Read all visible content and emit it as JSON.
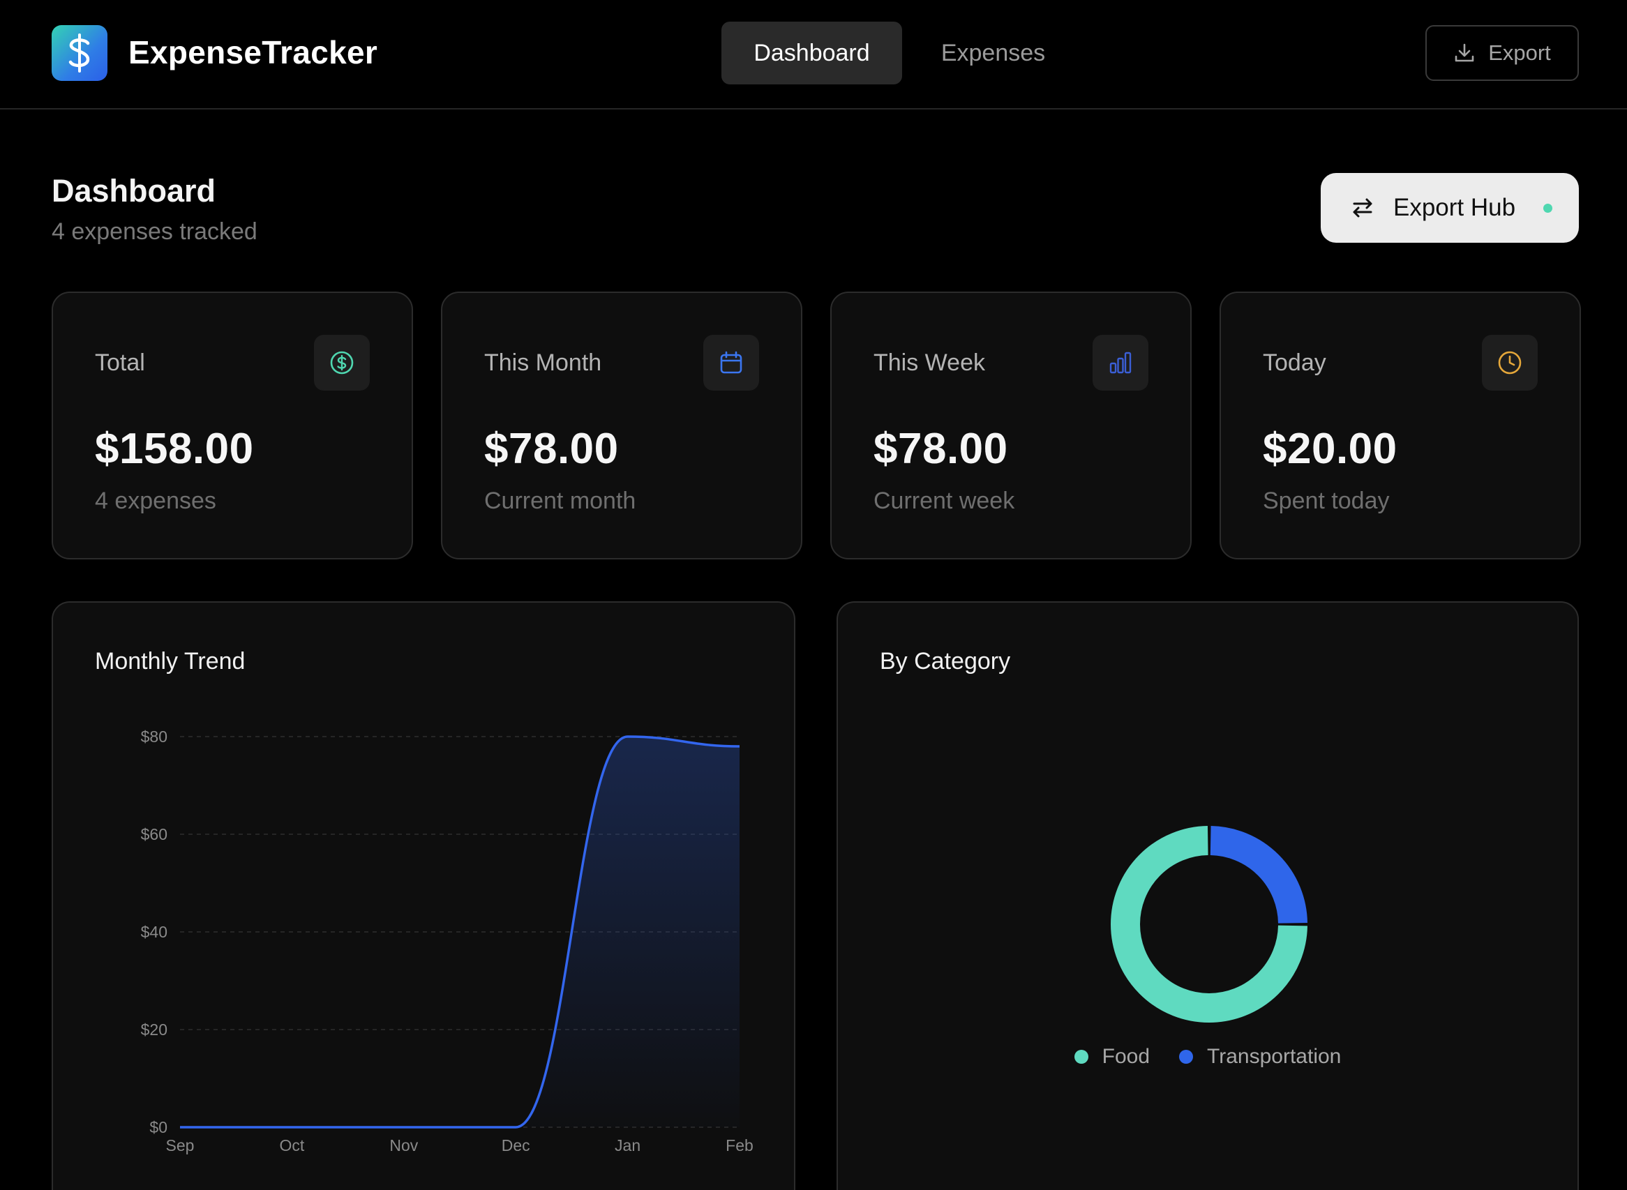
{
  "header": {
    "app_title": "ExpenseTracker",
    "logo_icon": "dollar-icon",
    "nav": [
      {
        "label": "Dashboard",
        "active": true
      },
      {
        "label": "Expenses",
        "active": false
      }
    ],
    "export_label": "Export"
  },
  "page": {
    "title": "Dashboard",
    "subtitle": "4 expenses tracked",
    "export_hub_label": "Export Hub"
  },
  "stats": [
    {
      "label": "Total",
      "value": "$158.00",
      "sub": "4 expenses",
      "icon": "dollar-circle-icon",
      "icon_color": "#4fd7b0"
    },
    {
      "label": "This Month",
      "value": "$78.00",
      "sub": "Current month",
      "icon": "calendar-icon",
      "icon_color": "#3b76f0"
    },
    {
      "label": "This Week",
      "value": "$78.00",
      "sub": "Current week",
      "icon": "bar-chart-icon",
      "icon_color": "#3b5fd6"
    },
    {
      "label": "Today",
      "value": "$20.00",
      "sub": "Spent today",
      "icon": "clock-icon",
      "icon_color": "#e5a73a"
    }
  ],
  "monthly_trend": {
    "title": "Monthly Trend",
    "chart_data": {
      "type": "area",
      "categories": [
        "Sep",
        "Oct",
        "Nov",
        "Dec",
        "Jan",
        "Feb"
      ],
      "values": [
        0,
        0,
        0,
        0,
        80,
        78
      ],
      "y_ticks": [
        "$0",
        "$20",
        "$40",
        "$60",
        "$80"
      ],
      "ylim": [
        0,
        80
      ],
      "grid": true,
      "line_color": "#3366ee"
    }
  },
  "by_category": {
    "title": "By Category",
    "chart_data": {
      "type": "pie",
      "labels": [
        "Food",
        "Transportation"
      ],
      "values": [
        75,
        25
      ],
      "colors": [
        "#5fdac0",
        "#2f66ea"
      ],
      "legend": "bottom"
    }
  }
}
